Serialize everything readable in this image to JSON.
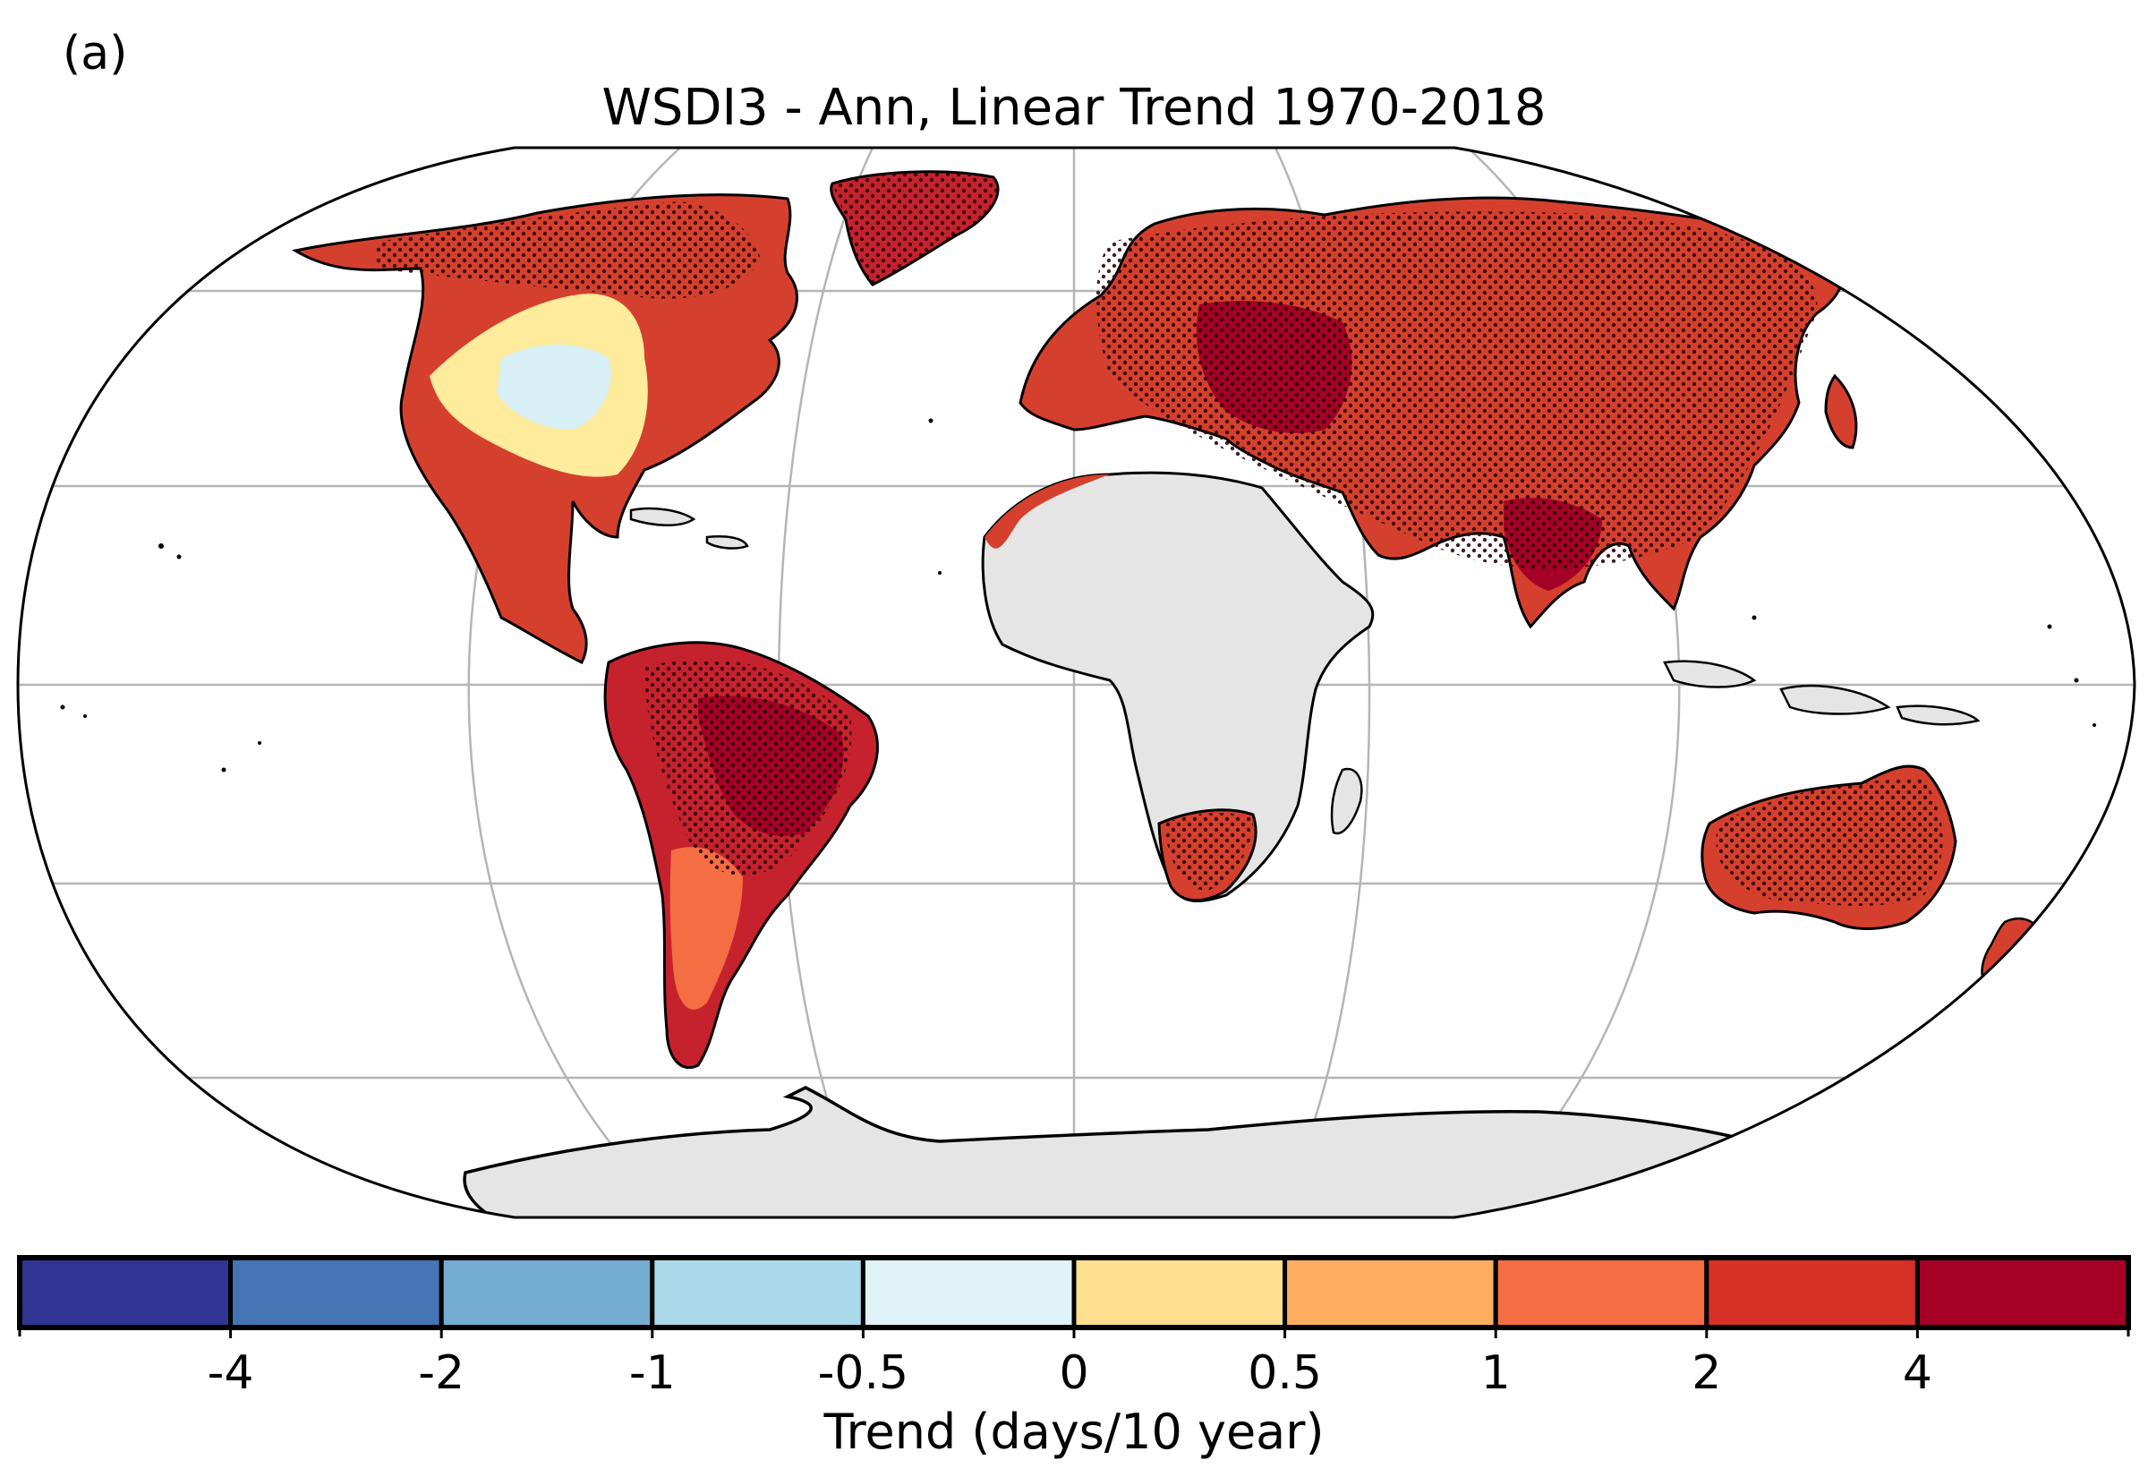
{
  "panel_label": "(a)",
  "title": "WSDI3 - Ann, Linear Trend 1970-2018",
  "colorbar": {
    "title": "Trend (days/10 year)",
    "tick_labels": [
      "-4",
      "-2",
      "-1",
      "-0.5",
      "0",
      "0.5",
      "1",
      "2",
      "4"
    ],
    "colors": [
      "#313695",
      "#4575b4",
      "#74add1",
      "#abd9e9",
      "#e0f3f8",
      "#fee090",
      "#fdae61",
      "#f46d43",
      "#d73027",
      "#a50026"
    ]
  },
  "map": {
    "projection": "Robinson",
    "no_data_color": "#e5e5e5",
    "stippling": "significant trends"
  }
}
